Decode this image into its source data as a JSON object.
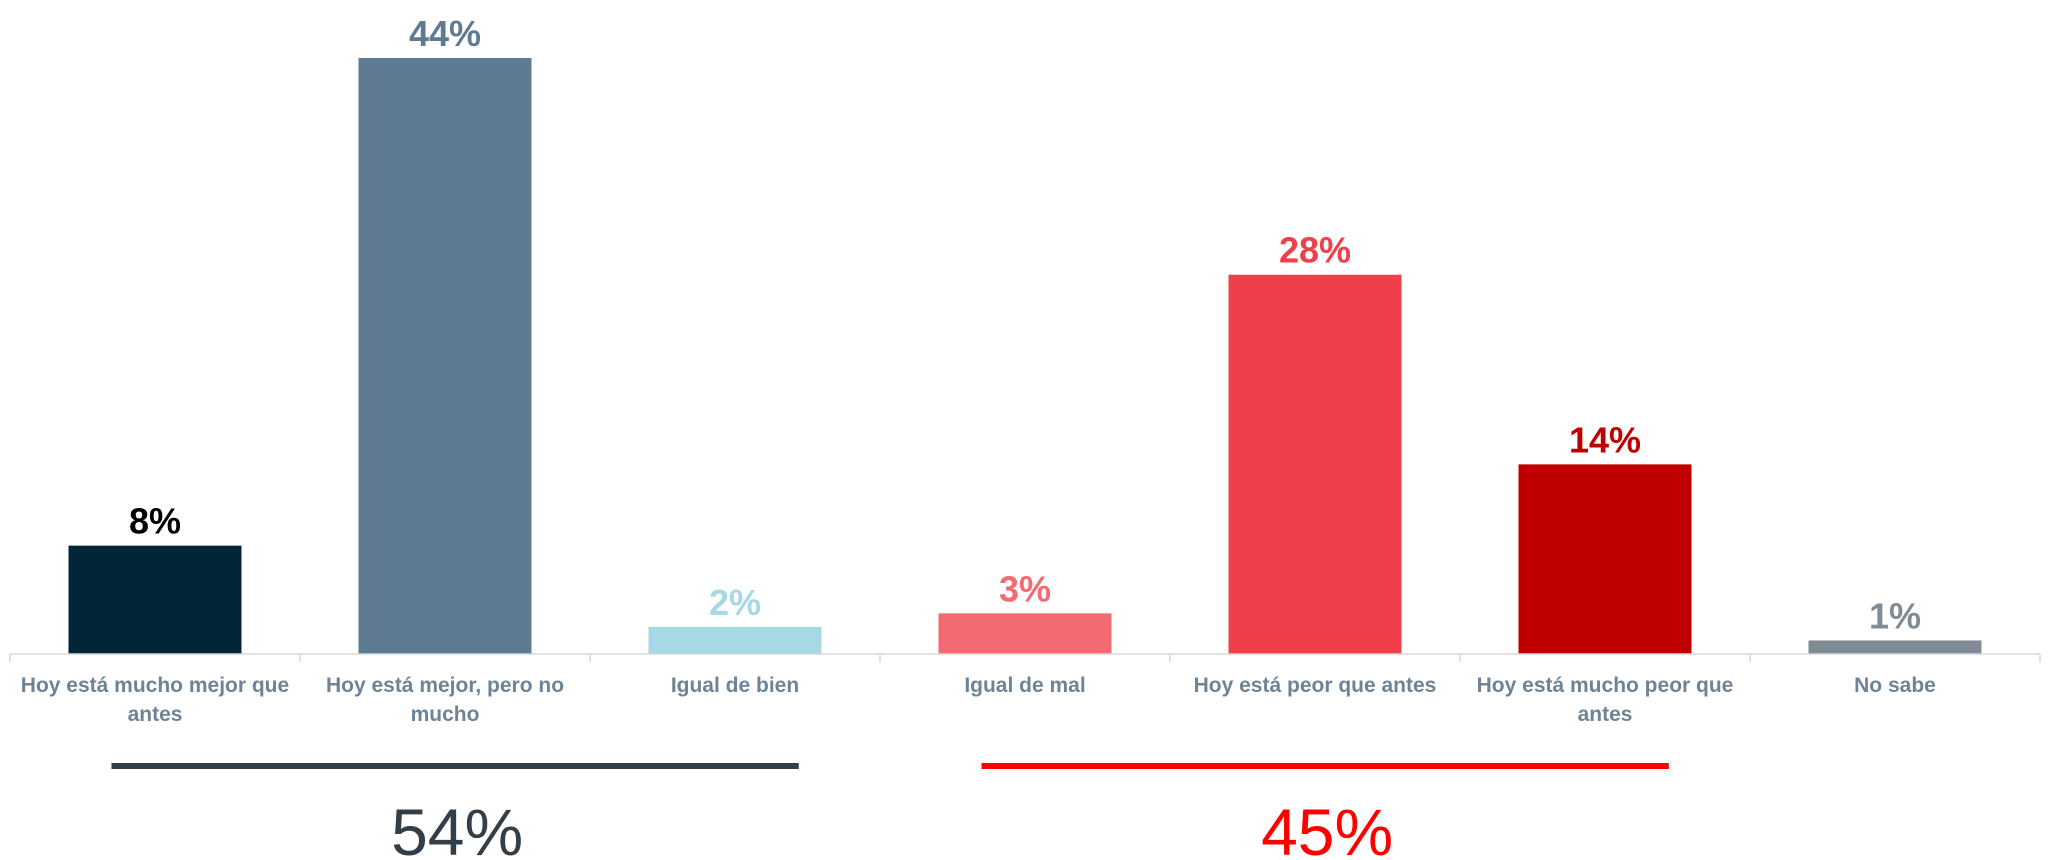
{
  "chart_data": {
    "type": "bar",
    "categories": [
      "Hoy está mucho mejor que antes",
      "Hoy está mejor, pero no mucho",
      "Igual de bien",
      "Igual de mal",
      "Hoy está peor que antes",
      "Hoy está mucho peor que antes",
      "No sabe"
    ],
    "values": [
      8,
      44,
      2,
      3,
      28,
      14,
      1
    ],
    "value_labels": [
      "8%",
      "44%",
      "2%",
      "3%",
      "28%",
      "14%",
      "1%"
    ],
    "bar_colors": [
      "#022538",
      "#5f7b91",
      "#a6d8e6",
      "#f26b72",
      "#ef3f4a",
      "#c00000",
      "#7f8c96"
    ],
    "label_colors": [
      "#000000",
      "#5f7b91",
      "#a6d8e6",
      "#f26b72",
      "#ef3f4a",
      "#c00000",
      "#7f8c96"
    ],
    "ylim": [
      0,
      45
    ],
    "grid": false,
    "groups": [
      {
        "total_label": "54%",
        "color": "#333f48",
        "first_category": 0,
        "last_category": 2
      },
      {
        "total_label": "45%",
        "color": "#ff0000",
        "first_category": 3,
        "last_category": 5
      }
    ],
    "axis_color": "#d9d9d9"
  }
}
